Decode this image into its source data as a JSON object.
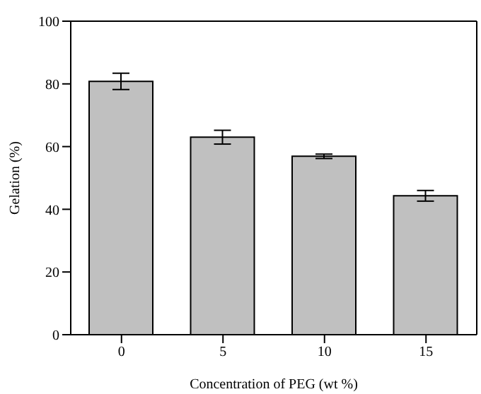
{
  "chart_data": {
    "type": "bar",
    "xlabel": "Concentration of PEG (wt %)",
    "ylabel": "Gelation (%)",
    "categories": [
      "0",
      "5",
      "10",
      "15"
    ],
    "values": [
      80.8,
      63.0,
      56.9,
      44.3
    ],
    "errors": [
      2.6,
      2.2,
      0.7,
      1.7
    ],
    "color": "#c0c0c0",
    "ylim": [
      0,
      100
    ],
    "yticks": [
      0,
      20,
      40,
      60,
      80,
      100
    ],
    "grid": false
  }
}
